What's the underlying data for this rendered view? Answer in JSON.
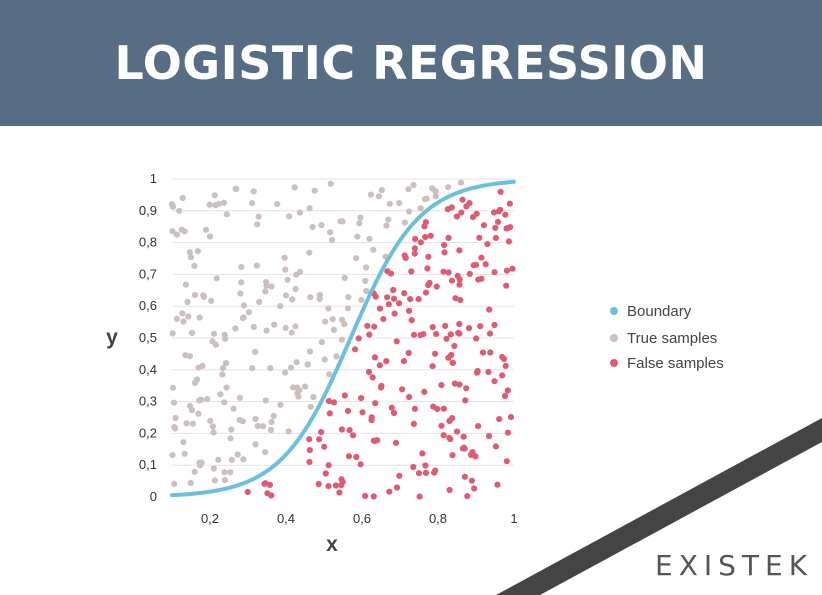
{
  "header": {
    "title": "LOGISTIC REGRESSION"
  },
  "brand": {
    "logo": "EXISTEK",
    "accent": "#cc2a3c",
    "stripe_color": "#444444",
    "banner_color": "#566d84"
  },
  "chart_data": {
    "type": "scatter",
    "xlabel": "x",
    "ylabel": "y",
    "xlim": [
      0.1,
      1.0
    ],
    "ylim": [
      0,
      1
    ],
    "xticks": [
      "0,2",
      "0,4",
      "0,6",
      "0,8",
      "1"
    ],
    "xtick_values": [
      0.2,
      0.4,
      0.6,
      0.8,
      1.0
    ],
    "yticks": [
      "0",
      "0,1",
      "0,2",
      "0,3",
      "0,4",
      "0,5",
      "0,6",
      "0,7",
      "0,8",
      "0,9",
      "1"
    ],
    "ytick_values": [
      0,
      0.1,
      0.2,
      0.3,
      0.4,
      0.5,
      0.6,
      0.7,
      0.8,
      0.9,
      1.0
    ],
    "grid": "horizontal",
    "legend": {
      "placement": "right"
    },
    "series": [
      {
        "name": "Boundary",
        "kind": "line",
        "color": "#6cc0de",
        "model": "logistic",
        "midpoint": 0.57,
        "steepness": 11
      },
      {
        "name": "True samples",
        "kind": "scatter",
        "color": "#cbbfbf",
        "count": 215,
        "region": "above boundary"
      },
      {
        "name": "False samples",
        "kind": "scatter",
        "color": "#de5c72",
        "count": 230,
        "region": "below boundary"
      }
    ]
  }
}
